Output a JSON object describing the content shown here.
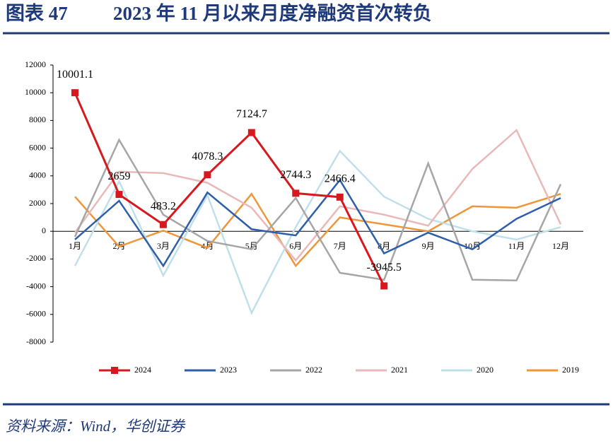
{
  "header": {
    "label": "图表 47",
    "title": "2023 年 11 月以来月度净融资首次转负"
  },
  "chart_data": {
    "type": "line",
    "categories": [
      "1月",
      "2月",
      "3月",
      "4月",
      "5月",
      "6月",
      "7月",
      "8月",
      "9月",
      "10月",
      "11月",
      "12月"
    ],
    "ylim": [
      -8000,
      12000
    ],
    "yticks": [
      -8000,
      -6000,
      -4000,
      -2000,
      0,
      2000,
      4000,
      6000,
      8000,
      10000,
      12000
    ],
    "legend": "bottom",
    "series": [
      {
        "name": "2024",
        "color": "#d7191f",
        "marker": "square",
        "show_labels": true,
        "values": [
          10001.1,
          2659,
          483.2,
          4078.3,
          7124.7,
          2744.3,
          2466.4,
          -3945.5,
          null,
          null,
          null,
          null
        ]
      },
      {
        "name": "2023",
        "color": "#2e5faa",
        "values": [
          -600,
          2200,
          -2500,
          2800,
          150,
          -300,
          3700,
          -1600,
          -100,
          -1300,
          900,
          2400
        ]
      },
      {
        "name": "2022",
        "color": "#a6a6a6",
        "values": [
          -400,
          6600,
          1200,
          -700,
          -1300,
          2400,
          -3000,
          -3500,
          4900,
          -3500,
          -3550,
          3400
        ]
      },
      {
        "name": "2021",
        "color": "#e9b9b9",
        "values": [
          -100,
          4300,
          4200,
          3500,
          1700,
          -2100,
          1800,
          1200,
          400,
          4500,
          7300,
          500
        ]
      },
      {
        "name": "2020",
        "color": "#bfe0ea",
        "values": [
          -2500,
          3600,
          -3200,
          2600,
          -5900,
          300,
          5800,
          2500,
          900,
          0,
          -600,
          300
        ]
      },
      {
        "name": "2019",
        "color": "#f0963a",
        "values": [
          2500,
          -1100,
          50,
          -1200,
          2700,
          -2500,
          1000,
          500,
          0,
          1800,
          1700,
          2700
        ]
      }
    ]
  },
  "source": "资料来源：Wind，华创证券"
}
